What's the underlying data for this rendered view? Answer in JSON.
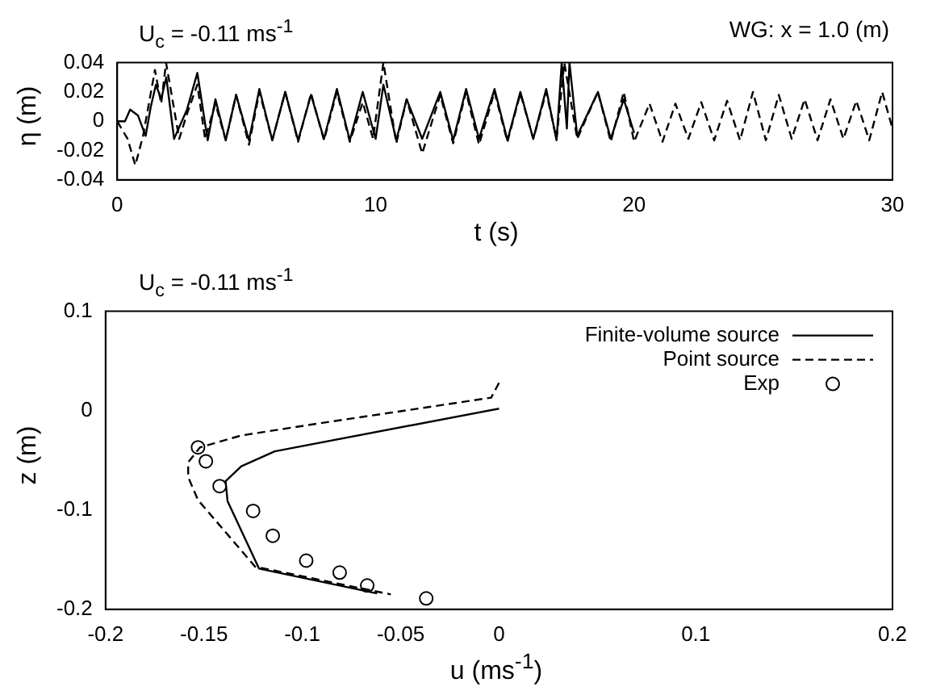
{
  "chart_data": [
    {
      "type": "line",
      "title": "U$_{c}$ = -0.11 ms$^{-1}$",
      "annotations": [
        "WG: x = 1.0 (m)"
      ],
      "xlabel": "t (s)",
      "ylabel": "η (m)",
      "xlim": [
        0,
        30
      ],
      "xticks": [
        0,
        10,
        20,
        30
      ],
      "ylim": [
        -0.04,
        0.04
      ],
      "yticks": [
        -0.04,
        -0.02,
        0,
        0.02,
        0.04
      ],
      "grid": false,
      "legend": false,
      "series": [
        {
          "color": "#000000",
          "line_style": "solid",
          "marker": "none",
          "x": [
            0,
            0.3,
            0.5,
            0.8,
            1.1,
            1.3,
            1.5,
            1.7,
            1.9,
            2.2,
            2.7,
            3.1,
            3.5,
            3.8,
            4.2,
            4.6,
            5.1,
            5.5,
            6.0,
            6.5,
            7.0,
            7.5,
            8.0,
            8.5,
            9.0,
            9.5,
            10.0,
            10.3,
            10.8,
            11.2,
            11.8,
            12.5,
            13.0,
            13.5,
            14.0,
            14.6,
            15.1,
            15.6,
            16.1,
            16.6,
            17.0,
            17.2,
            17.4,
            17.5,
            17.8,
            18.6,
            19.1,
            19.6,
            20.0
          ],
          "values": [
            0,
            0,
            0.008,
            0.004,
            -0.01,
            0.01,
            0.025,
            0.015,
            0.03,
            -0.012,
            0.008,
            0.033,
            -0.013,
            0.015,
            -0.013,
            0.018,
            -0.013,
            0.022,
            -0.013,
            0.02,
            -0.013,
            0.018,
            -0.012,
            0.022,
            -0.013,
            0.02,
            -0.012,
            0.025,
            -0.013,
            0.015,
            -0.012,
            0.02,
            -0.013,
            0.022,
            -0.012,
            0.022,
            -0.013,
            0.02,
            -0.012,
            0.022,
            -0.013,
            0.04,
            -0.005,
            0.04,
            -0.01,
            0.02,
            -0.012,
            0.015,
            -0.008
          ]
        },
        {
          "color": "#000000",
          "line_style": "dashed",
          "marker": "none",
          "x": [
            0,
            0.4,
            0.7,
            1.0,
            1.46,
            1.7,
            1.89,
            2.4,
            2.7,
            3.1,
            3.4,
            3.8,
            4.2,
            4.6,
            5.1,
            5.5,
            6.0,
            6.5,
            7.0,
            7.5,
            8.0,
            8.5,
            9.0,
            9.5,
            9.9,
            10.3,
            10.8,
            11.2,
            11.8,
            12.5,
            13.0,
            13.5,
            14.0,
            14.6,
            15.1,
            15.6,
            16.1,
            16.6,
            17.0,
            17.3,
            17.8,
            18.6,
            19.1,
            19.6,
            20.0,
            20.6,
            21.1,
            21.6,
            22.1,
            22.6,
            23.1,
            23.6,
            24.1,
            24.6,
            25.1,
            25.6,
            26.1,
            26.6,
            27.1,
            27.6,
            28.1,
            28.6,
            29.1,
            29.6,
            30
          ],
          "values": [
            0,
            -0.012,
            -0.03,
            -0.01,
            0.035,
            0.012,
            0.04,
            -0.012,
            0.005,
            0.025,
            -0.012,
            0.012,
            -0.013,
            0.018,
            -0.016,
            0.02,
            -0.013,
            0.02,
            -0.014,
            0.019,
            -0.013,
            0.02,
            -0.014,
            0.013,
            -0.012,
            0.04,
            -0.015,
            0.015,
            -0.022,
            0.018,
            -0.015,
            0.02,
            -0.016,
            0.02,
            -0.014,
            0.019,
            -0.012,
            0.02,
            -0.012,
            0.04,
            -0.012,
            0.02,
            -0.014,
            0.02,
            -0.014,
            0.012,
            -0.014,
            0.012,
            -0.012,
            0.013,
            -0.013,
            0.014,
            -0.013,
            0.02,
            -0.013,
            0.018,
            -0.012,
            0.015,
            -0.013,
            0.015,
            -0.012,
            0.014,
            -0.013,
            0.02,
            -0.005
          ]
        }
      ]
    },
    {
      "type": "line",
      "title": "U$_{c}$ = -0.11 ms$^{-1}$",
      "xlabel": "u (ms$^{-1}$)",
      "ylabel": "z (m)",
      "xlim": [
        -0.2,
        0.2
      ],
      "xticks": [
        -0.2,
        -0.15,
        -0.1,
        -0.05,
        0,
        0.1,
        0.2
      ],
      "ylim": [
        -0.2,
        0.1
      ],
      "yticks": [
        -0.2,
        -0.1,
        0,
        0.1
      ],
      "grid": false,
      "legend": "top right",
      "series": [
        {
          "name": "Finite-volume source",
          "color": "#000000",
          "line_style": "solid",
          "marker": "none",
          "x": [
            0,
            -0.114,
            -0.131,
            -0.139,
            -0.138,
            -0.122,
            -0.062
          ],
          "values": [
            0.002,
            -0.041,
            -0.056,
            -0.071,
            -0.091,
            -0.159,
            -0.184
          ]
        },
        {
          "name": "Point source",
          "color": "#000000",
          "line_style": "dashed",
          "marker": "none",
          "x": [
            0,
            -0.004,
            -0.092,
            -0.131,
            -0.152,
            -0.158,
            -0.158,
            -0.153,
            -0.124,
            -0.055
          ],
          "values": [
            0.028,
            0.013,
            -0.013,
            -0.025,
            -0.037,
            -0.052,
            -0.067,
            -0.09,
            -0.157,
            -0.185
          ]
        },
        {
          "name": "Exp",
          "type": "scatter",
          "color": "#000000",
          "marker": "circle",
          "x": [
            -0.153,
            -0.149,
            -0.142,
            -0.125,
            -0.115,
            -0.098,
            -0.081,
            -0.067,
            -0.037
          ],
          "values": [
            -0.037,
            -0.051,
            -0.076,
            -0.101,
            -0.126,
            -0.151,
            -0.163,
            -0.176,
            -0.189
          ]
        }
      ]
    }
  ]
}
